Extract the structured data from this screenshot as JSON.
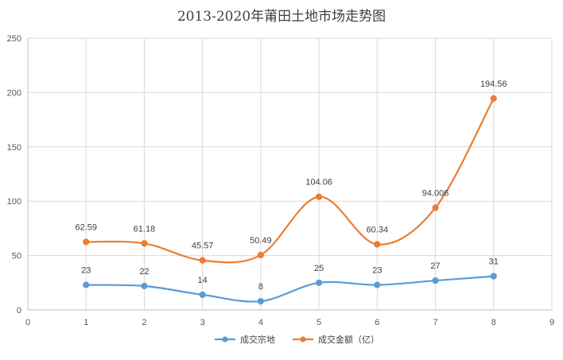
{
  "chart_data": {
    "type": "line",
    "title": "2013-2020年莆田土地市场走势图",
    "xlabel": "",
    "ylabel": "",
    "xlim": [
      0,
      9
    ],
    "ylim": [
      0,
      250
    ],
    "x_ticks": [
      "0",
      "1",
      "2",
      "3",
      "4",
      "5",
      "6",
      "7",
      "8",
      "9"
    ],
    "y_ticks": [
      "0",
      "50",
      "100",
      "150",
      "200",
      "250"
    ],
    "grid": "vertical and horizontal",
    "legend_position": "bottom",
    "smooth": true,
    "series": [
      {
        "name": "成交宗地",
        "color": "#5B9BD5",
        "x": [
          1,
          2,
          3,
          4,
          5,
          6,
          7,
          8
        ],
        "values": [
          23,
          22,
          14,
          8,
          25,
          23,
          27,
          31
        ],
        "labels": [
          "23",
          "22",
          "14",
          "8",
          "25",
          "23",
          "27",
          "31"
        ]
      },
      {
        "name": "成交金额（亿）",
        "color": "#ED7D31",
        "x": [
          1,
          2,
          3,
          4,
          5,
          6,
          7,
          8
        ],
        "values": [
          62.59,
          61.18,
          45.57,
          50.49,
          104.06,
          60.34,
          94.006,
          194.56
        ],
        "labels": [
          "62.59",
          "61.18",
          "45.57",
          "50.49",
          "104.06",
          "60.34",
          "94.006",
          "194.56"
        ]
      }
    ]
  }
}
